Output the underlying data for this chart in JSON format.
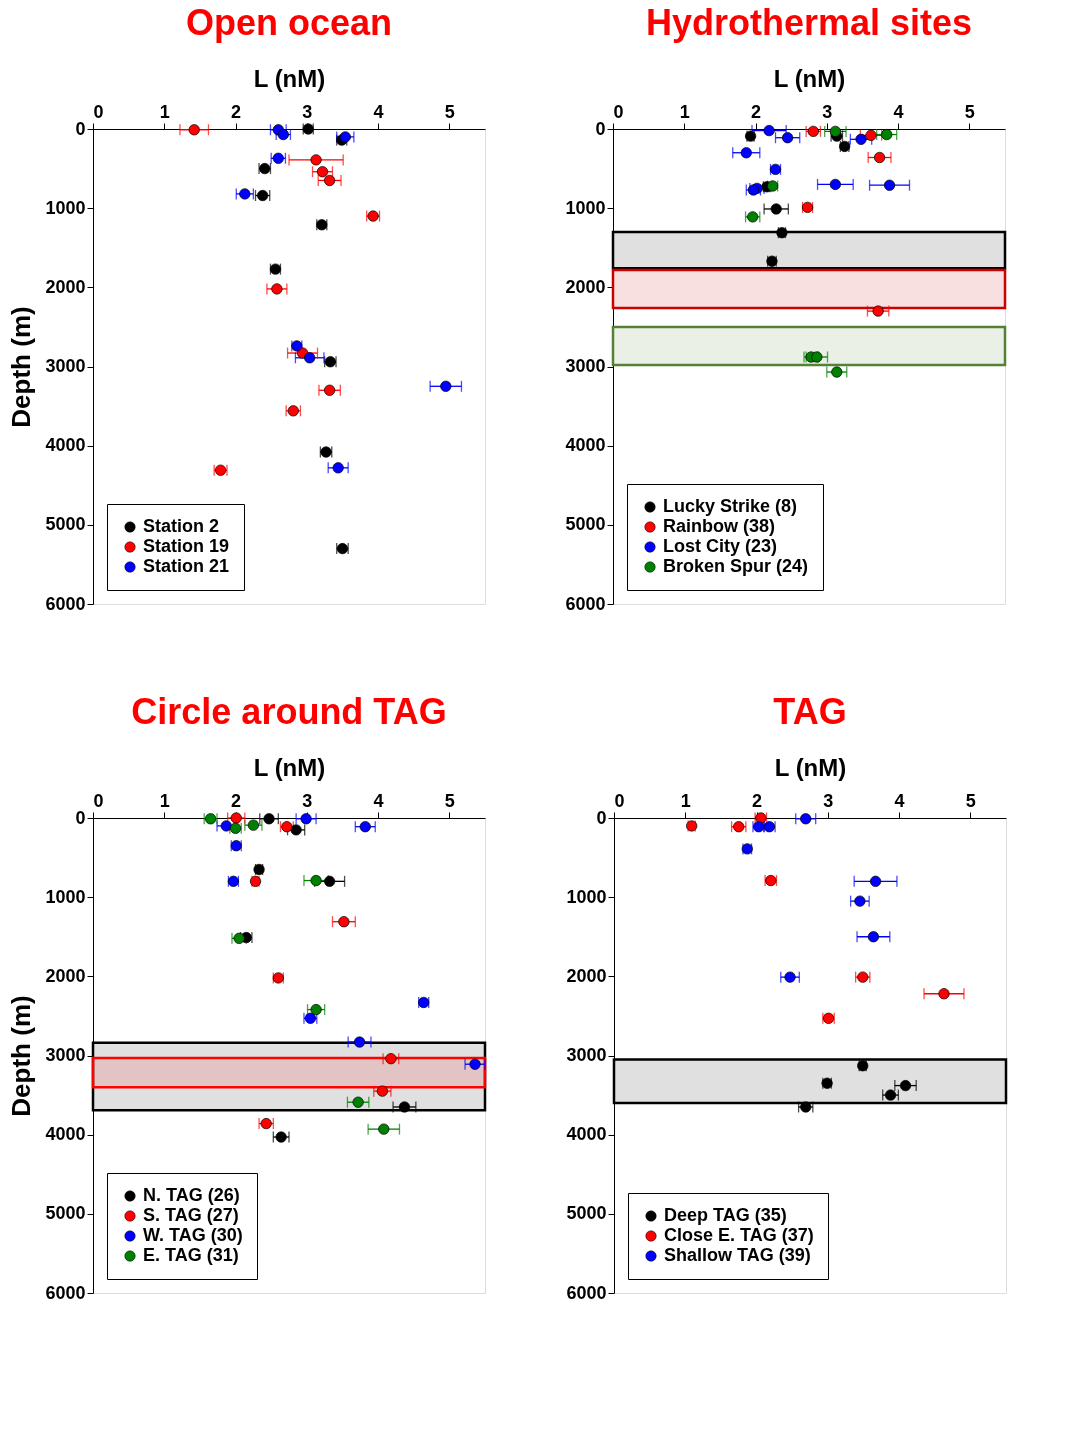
{
  "chart_data": [
    {
      "type": "scatter",
      "title": "Open ocean",
      "xlabel": "L (nM)",
      "ylabel": "Depth (m)",
      "xlim": [
        0,
        5.5
      ],
      "xticks": [
        0,
        1,
        2,
        3,
        4,
        5
      ],
      "ylim": [
        6000,
        0
      ],
      "yticks": [
        0,
        1000,
        2000,
        3000,
        4000,
        5000,
        6000
      ],
      "marker": "circle",
      "legend": "bottom left",
      "grid": false,
      "series": [
        {
          "name": "Station 2",
          "color": "#000000",
          "x": [
            3.02,
            3.49,
            2.41,
            2.38,
            3.21,
            2.56,
            3.33,
            3.27,
            3.5
          ],
          "values": [
            0,
            140,
            500,
            840,
            1210,
            1770,
            2940,
            4080,
            5300
          ],
          "xerrors": [
            0.07,
            0.07,
            0.08,
            0.1,
            0.07,
            0.07,
            0.08,
            0.08,
            0.08
          ]
        },
        {
          "name": "Station 19",
          "color": "#ff0000",
          "x": [
            1.42,
            3.13,
            3.22,
            3.32,
            3.93,
            2.58,
            2.94,
            3.32,
            2.81,
            1.79
          ],
          "values": [
            10,
            390,
            540,
            650,
            1100,
            2020,
            2830,
            3300,
            3560,
            4310
          ],
          "xerrors": [
            0.2,
            0.38,
            0.14,
            0.16,
            0.09,
            0.14,
            0.21,
            0.15,
            0.1,
            0.09
          ]
        },
        {
          "name": "Station 21",
          "color": "#0000ff",
          "x": [
            2.6,
            2.67,
            3.54,
            2.6,
            2.13,
            2.86,
            3.04,
            4.95,
            3.44
          ],
          "values": [
            10,
            70,
            100,
            370,
            820,
            2740,
            2890,
            3250,
            4280
          ],
          "xerrors": [
            0.11,
            0.1,
            0.12,
            0.1,
            0.12,
            0.07,
            0.2,
            0.22,
            0.14
          ]
        }
      ]
    },
    {
      "type": "scatter",
      "title": "Hydrothermal sites",
      "xlabel": "L (nM)",
      "xlim": [
        0,
        5.5
      ],
      "xticks": [
        0,
        1,
        2,
        3,
        4,
        5
      ],
      "ylim": [
        6000,
        0
      ],
      "yticks": [
        0,
        1000,
        2000,
        3000,
        4000,
        5000,
        6000
      ],
      "marker": "circle",
      "legend": "bottom left",
      "grid": false,
      "bands": [
        {
          "axis": "y",
          "from": 1300,
          "to": 1760,
          "color": "#000000"
        },
        {
          "axis": "y",
          "from": 1780,
          "to": 2260,
          "color": "#cc0000"
        },
        {
          "axis": "y",
          "from": 2500,
          "to": 2980,
          "color": "#548235"
        }
      ],
      "series": [
        {
          "name": "Lucky Strike (8)",
          "color": "#000000",
          "x": [
            1.93,
            3.14,
            3.25,
            2.16,
            2.29,
            2.37,
            2.23
          ],
          "values": [
            90,
            90,
            220,
            730,
            1010,
            1310,
            1670
          ],
          "xerrors": [
            0.05,
            0.08,
            0.06,
            0.05,
            0.17,
            0.05,
            0.06
          ]
        },
        {
          "name": "Rainbow (38)",
          "color": "#ff0000",
          "x": [
            2.81,
            3.62,
            3.74,
            2.73,
            3.72
          ],
          "values": [
            30,
            80,
            360,
            990,
            2300
          ],
          "xerrors": [
            0.1,
            0.15,
            0.16,
            0.07,
            0.15
          ]
        },
        {
          "name": "Lost City (23)",
          "color": "#0000ff",
          "x": [
            2.19,
            2.45,
            3.48,
            1.87,
            2.28,
            3.12,
            3.88,
            2.02,
            1.97
          ],
          "values": [
            20,
            110,
            130,
            300,
            510,
            700,
            710,
            750,
            770
          ],
          "xerrors": [
            0.24,
            0.17,
            0.15,
            0.19,
            0.07,
            0.25,
            0.28,
            0.1,
            0.1
          ]
        },
        {
          "name": "Broken Spur (24)",
          "color": "#008000",
          "x": [
            3.12,
            3.84,
            2.24,
            1.96,
            2.78,
            2.86,
            3.14
          ],
          "values": [
            30,
            70,
            720,
            1110,
            2880,
            2880,
            3070
          ],
          "xerrors": [
            0.15,
            0.14,
            0.07,
            0.1,
            0.1,
            0.15,
            0.14
          ]
        }
      ]
    },
    {
      "type": "scatter",
      "title": "Circle around TAG",
      "xlabel": "L (nM)",
      "ylabel": "Depth (m)",
      "xlim": [
        0,
        5.5
      ],
      "xticks": [
        0,
        1,
        2,
        3,
        4,
        5
      ],
      "ylim": [
        6000,
        0
      ],
      "yticks": [
        0,
        1000,
        2000,
        3000,
        4000,
        5000,
        6000
      ],
      "marker": "circle",
      "legend": "bottom left",
      "grid": false,
      "bands": [
        {
          "axis": "y",
          "from": 2840,
          "to": 3690,
          "color": "#000000"
        },
        {
          "axis": "y",
          "from": 3030,
          "to": 3400,
          "color": "#ff0000"
        }
      ],
      "series": [
        {
          "name": "N. TAG (26)",
          "color": "#000000",
          "x": [
            2.47,
            2.85,
            2.33,
            3.32,
            2.15,
            4.37,
            2.64
          ],
          "values": [
            10,
            150,
            650,
            800,
            1510,
            3650,
            4030
          ],
          "xerrors": [
            0.13,
            0.12,
            0.05,
            0.21,
            0.08,
            0.16,
            0.11
          ]
        },
        {
          "name": "S. TAG (27)",
          "color": "#ff0000",
          "x": [
            2.01,
            2.72,
            2.28,
            3.52,
            2.6,
            4.18,
            4.06,
            2.43
          ],
          "values": [
            0,
            110,
            800,
            1310,
            2020,
            3040,
            3450,
            3860
          ],
          "xerrors": [
            0.12,
            0.09,
            0.05,
            0.16,
            0.07,
            0.11,
            0.12,
            0.1
          ]
        },
        {
          "name": "W. TAG (30)",
          "color": "#0000ff",
          "x": [
            1.87,
            2.99,
            3.82,
            2.01,
            1.97,
            4.64,
            3.05,
            3.74,
            5.36
          ],
          "values": [
            100,
            10,
            110,
            350,
            800,
            2330,
            2530,
            2830,
            3110
          ],
          "xerrors": [
            0.13,
            0.14,
            0.14,
            0.07,
            0.07,
            0.07,
            0.09,
            0.16,
            0.14
          ]
        },
        {
          "name": "E. TAG (31)",
          "color": "#008000",
          "x": [
            1.65,
            2.25,
            2.0,
            3.13,
            2.05,
            3.13,
            3.72,
            4.08
          ],
          "values": [
            10,
            90,
            130,
            790,
            1520,
            2420,
            3590,
            3930
          ],
          "xerrors": [
            0.09,
            0.12,
            0.08,
            0.17,
            0.1,
            0.12,
            0.15,
            0.22
          ]
        }
      ]
    },
    {
      "type": "scatter",
      "title": "TAG",
      "xlabel": "L (nM)",
      "xlim": [
        0,
        5.5
      ],
      "xticks": [
        0,
        1,
        2,
        3,
        4,
        5
      ],
      "ylim": [
        6000,
        0
      ],
      "yticks": [
        0,
        1000,
        2000,
        3000,
        4000,
        5000,
        6000
      ],
      "marker": "circle",
      "legend": "bottom left",
      "grid": false,
      "bands": [
        {
          "axis": "y",
          "from": 3050,
          "to": 3600,
          "color": "#000000"
        }
      ],
      "series": [
        {
          "name": "Deep TAG (35)",
          "color": "#000000",
          "x": [
            3.49,
            2.99,
            4.09,
            3.88,
            2.69
          ],
          "values": [
            3130,
            3350,
            3380,
            3500,
            3650
          ],
          "xerrors": [
            0.05,
            0.06,
            0.15,
            0.11,
            0.1
          ]
        },
        {
          "name": "Close E. TAG (37)",
          "color": "#ff0000",
          "x": [
            2.06,
            1.09,
            1.75,
            2.2,
            3.49,
            4.63,
            3.01
          ],
          "values": [
            0,
            100,
            110,
            790,
            2010,
            2220,
            2530
          ],
          "xerrors": [
            0.08,
            0.05,
            0.1,
            0.08,
            0.1,
            0.28,
            0.08
          ]
        },
        {
          "name": "Shallow TAG (39)",
          "color": "#0000ff",
          "x": [
            2.69,
            2.03,
            2.18,
            1.87,
            3.67,
            3.45,
            3.64,
            2.47
          ],
          "values": [
            10,
            110,
            110,
            390,
            800,
            1050,
            1500,
            2010
          ],
          "xerrors": [
            0.14,
            0.08,
            0.08,
            0.06,
            0.3,
            0.13,
            0.23,
            0.13
          ]
        }
      ]
    }
  ]
}
